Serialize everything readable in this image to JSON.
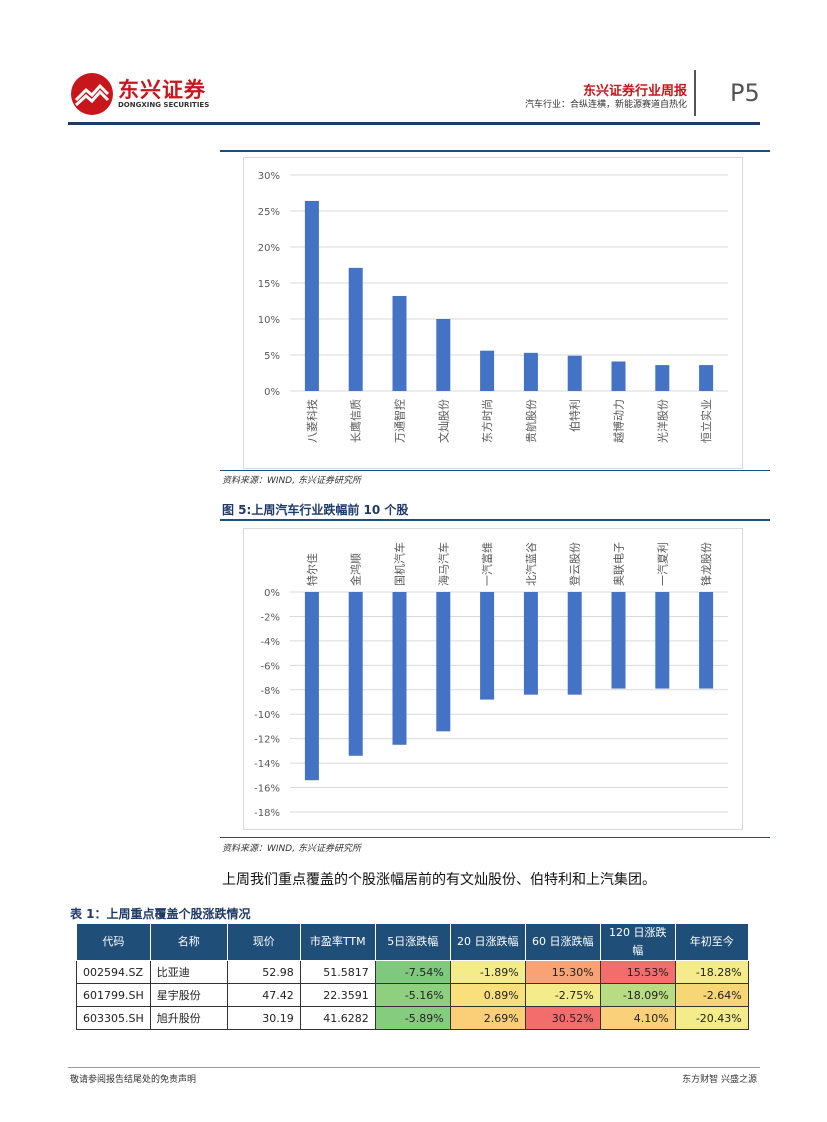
{
  "header": {
    "logo_cn": "东兴证券",
    "logo_en": "DONGXING SECURITIES",
    "report_title": "东兴证券行业周报",
    "report_subtitle": "汽车行业：合纵连横，新能源赛道自热化",
    "page_number": "P5"
  },
  "figure4": {
    "source": "资料来源：WIND, 东兴证券研究所"
  },
  "figure5": {
    "title": "图 5:上周汽车行业跌幅前 10 个股",
    "source": "资料来源：WIND, 东兴证券研究所"
  },
  "paragraph": "上周我们重点覆盖的个股涨幅居前的有文灿股份、伯特利和上汽集团。",
  "table1": {
    "title": "表 1：上周重点覆盖个股涨跌情况",
    "headers": [
      "代码",
      "名称",
      "现价",
      "市盈率TTM",
      "5日涨跌幅",
      "20 日涨跌幅",
      "60 日涨跌幅",
      "120 日涨跌幅",
      "年初至今"
    ],
    "rows": [
      [
        "002594.SZ",
        "比亚迪",
        "52.98",
        "51.5817",
        "-7.54%",
        "-1.89%",
        "15.30%",
        "15.53%",
        "-18.28%"
      ],
      [
        "601799.SH",
        "星宇股份",
        "47.42",
        "22.3591",
        "-5.16%",
        "0.89%",
        "-2.75%",
        "-18.09%",
        "-2.64%"
      ],
      [
        "603305.SH",
        "旭升股份",
        "30.19",
        "41.6282",
        "-5.89%",
        "2.69%",
        "30.52%",
        "4.10%",
        "-20.43%"
      ]
    ],
    "cell_colors": [
      [
        "",
        "",
        "",
        "",
        "#7fc97f",
        "#f4ec8a",
        "#f8a276",
        "#f46d6d",
        "#f4ec8a"
      ],
      [
        "",
        "",
        "",
        "",
        "#8fd080",
        "#f9e07c",
        "#f4ec8a",
        "#b7dc82",
        "#f7d775"
      ],
      [
        "",
        "",
        "",
        "",
        "#86cc7e",
        "#fbcf77",
        "#f46d6d",
        "#fbd07a",
        "#f4ec8a"
      ]
    ]
  },
  "footer": {
    "left": "敬请参阅报告结尾处的免责声明",
    "right": "东方财智 兴盛之源"
  },
  "chart_data": [
    {
      "type": "bar",
      "categories": [
        "八菱科技",
        "长鹰信质",
        "万通智控",
        "文灿股份",
        "东方时尚",
        "贵航股份",
        "伯特利",
        "越博动力",
        "光洋股份",
        "恒立实业"
      ],
      "values": [
        26.4,
        17.1,
        13.2,
        10.0,
        5.6,
        5.3,
        4.9,
        4.1,
        3.6,
        3.6
      ],
      "ylim": [
        0,
        30
      ],
      "yticks": [
        "0%",
        "5%",
        "10%",
        "15%",
        "20%",
        "25%",
        "30%"
      ],
      "color": "#4472c4",
      "grid": true
    },
    {
      "type": "bar",
      "categories": [
        "特尔佳",
        "金鸿顺",
        "国机汽车",
        "海马汽车",
        "一汽富维",
        "北汽蓝谷",
        "登云股份",
        "奥联电子",
        "一汽夏利",
        "锋龙股份"
      ],
      "values": [
        -15.4,
        -13.4,
        -12.5,
        -11.4,
        -8.8,
        -8.4,
        -8.4,
        -7.9,
        -7.9,
        -7.9
      ],
      "ylim": [
        -18,
        0
      ],
      "yticks": [
        "0%",
        "-2%",
        "-4%",
        "-6%",
        "-8%",
        "-10%",
        "-12%",
        "-14%",
        "-16%",
        "-18%"
      ],
      "color": "#4472c4",
      "grid": true
    }
  ]
}
